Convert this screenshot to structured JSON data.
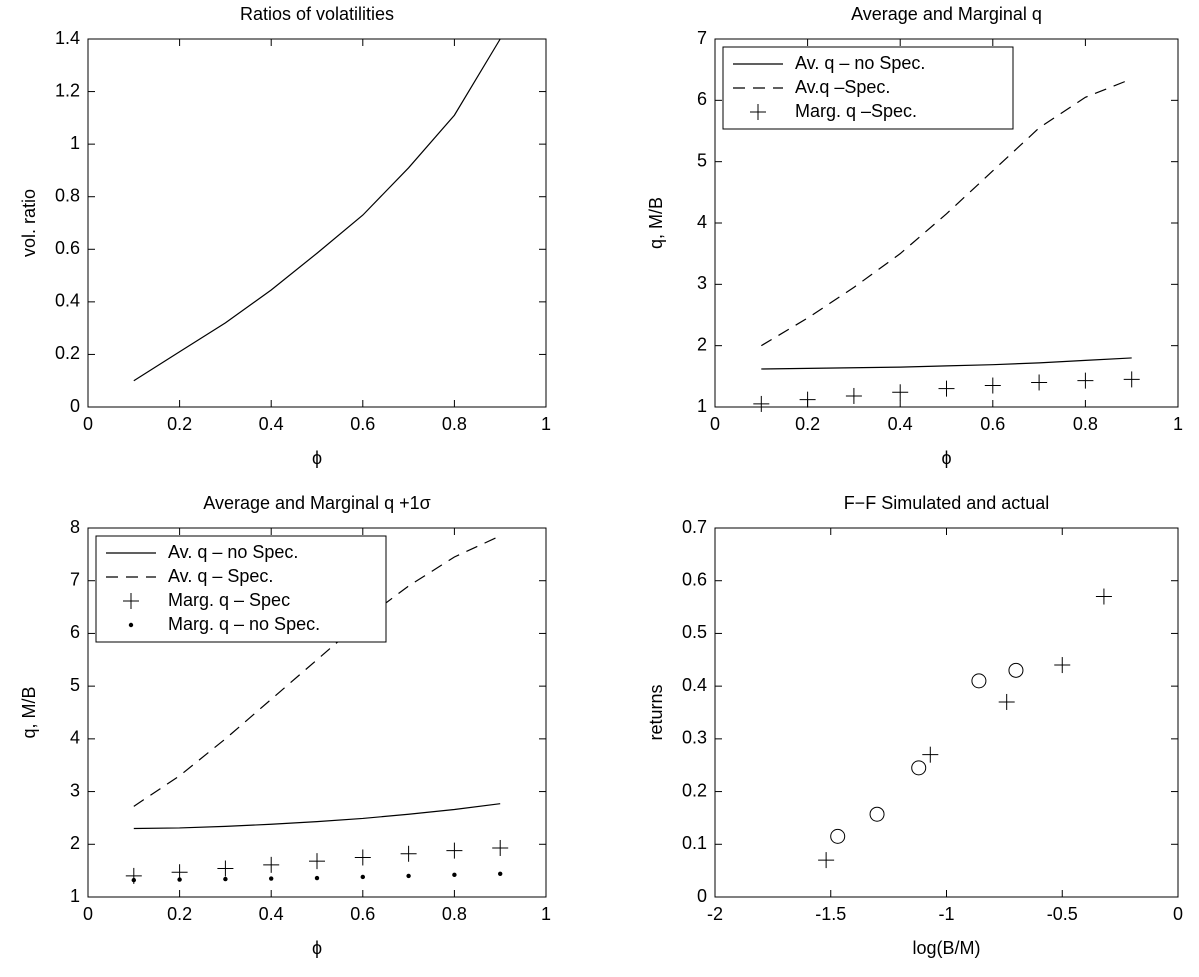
{
  "chart_data": [
    {
      "type": "line",
      "title": "Ratios of volatilities",
      "x_label": "ϕ",
      "y_label": "vol. ratio",
      "x": [
        0.1,
        0.2,
        0.3,
        0.4,
        0.5,
        0.6,
        0.7,
        0.8,
        0.9
      ],
      "series": [
        {
          "style": "solid",
          "color": "#000000",
          "values": [
            0.1,
            0.21,
            0.32,
            0.445,
            0.585,
            0.73,
            0.91,
            1.11,
            1.4
          ]
        }
      ],
      "xlim": [
        0,
        1
      ],
      "xticks": [
        0,
        0.2,
        0.4,
        0.6,
        0.8,
        1
      ],
      "ylim": [
        0,
        1.4
      ],
      "yticks": [
        0,
        0.2,
        0.4,
        0.6,
        0.8,
        1,
        1.2,
        1.4
      ]
    },
    {
      "type": "line",
      "title": "Average and Marginal q",
      "x_label": "ϕ",
      "y_label": "q, M/B",
      "x": [
        0.1,
        0.2,
        0.3,
        0.4,
        0.5,
        0.6,
        0.7,
        0.8,
        0.9
      ],
      "series": [
        {
          "name": "Av. q – no Spec.",
          "style": "solid",
          "color": "#000000",
          "values": [
            1.62,
            1.63,
            1.64,
            1.65,
            1.67,
            1.69,
            1.72,
            1.76,
            1.8
          ]
        },
        {
          "name": "Av.q –Spec.",
          "style": "dashed",
          "color": "#000000",
          "values": [
            2.0,
            2.45,
            2.95,
            3.5,
            4.15,
            4.85,
            5.55,
            6.05,
            6.35
          ]
        },
        {
          "name": "Marg. q –Spec.",
          "style": "plus",
          "color": "#000000",
          "values": [
            1.05,
            1.12,
            1.18,
            1.24,
            1.3,
            1.35,
            1.4,
            1.43,
            1.45
          ]
        }
      ],
      "legend": "upper left",
      "xlim": [
        0,
        1
      ],
      "xticks": [
        0,
        0.2,
        0.4,
        0.6,
        0.8,
        1
      ],
      "ylim": [
        1,
        7
      ],
      "yticks": [
        1,
        2,
        3,
        4,
        5,
        6,
        7
      ]
    },
    {
      "type": "line",
      "title": "Average and Marginal q +1σ",
      "x_label": "ϕ",
      "y_label": "q, M/B",
      "x": [
        0.1,
        0.2,
        0.3,
        0.4,
        0.5,
        0.6,
        0.7,
        0.8,
        0.9
      ],
      "series": [
        {
          "name": "Av. q – no Spec.",
          "style": "solid",
          "color": "#000000",
          "values": [
            2.3,
            2.31,
            2.34,
            2.38,
            2.43,
            2.49,
            2.57,
            2.66,
            2.77
          ]
        },
        {
          "name": "Av. q – Spec.",
          "style": "dashed",
          "color": "#000000",
          "values": [
            2.72,
            3.3,
            4.0,
            4.75,
            5.5,
            6.25,
            6.9,
            7.45,
            7.85
          ]
        },
        {
          "name": "Marg. q – Spec",
          "style": "plus",
          "color": "#000000",
          "values": [
            1.4,
            1.47,
            1.54,
            1.61,
            1.68,
            1.75,
            1.82,
            1.88,
            1.93
          ]
        },
        {
          "name": "Marg. q – no Spec.",
          "style": "dot",
          "color": "#000000",
          "values": [
            1.32,
            1.33,
            1.34,
            1.35,
            1.36,
            1.38,
            1.4,
            1.42,
            1.44
          ]
        }
      ],
      "legend": "upper left",
      "xlim": [
        0,
        1
      ],
      "xticks": [
        0,
        0.2,
        0.4,
        0.6,
        0.8,
        1
      ],
      "ylim": [
        1,
        8
      ],
      "yticks": [
        1,
        2,
        3,
        4,
        5,
        6,
        7,
        8
      ]
    },
    {
      "type": "scatter",
      "title": "F−F Simulated and actual",
      "x_label": "log(B/M)",
      "y_label": "returns",
      "series": [
        {
          "style": "plus",
          "color": "#000000",
          "x": [
            -1.52,
            -1.07,
            -0.74,
            -0.5,
            -0.32
          ],
          "values": [
            0.07,
            0.27,
            0.37,
            0.44,
            0.57
          ]
        },
        {
          "style": "circle",
          "color": "#000000",
          "x": [
            -1.47,
            -1.3,
            -1.12,
            -0.86,
            -0.7
          ],
          "values": [
            0.115,
            0.157,
            0.245,
            0.41,
            0.43
          ]
        }
      ],
      "xlim": [
        -2,
        0
      ],
      "xticks": [
        -2,
        -1.5,
        -1,
        -0.5,
        0
      ],
      "ylim": [
        0,
        0.7
      ],
      "yticks": [
        0,
        0.1,
        0.2,
        0.3,
        0.4,
        0.5,
        0.6,
        0.7
      ]
    }
  ]
}
